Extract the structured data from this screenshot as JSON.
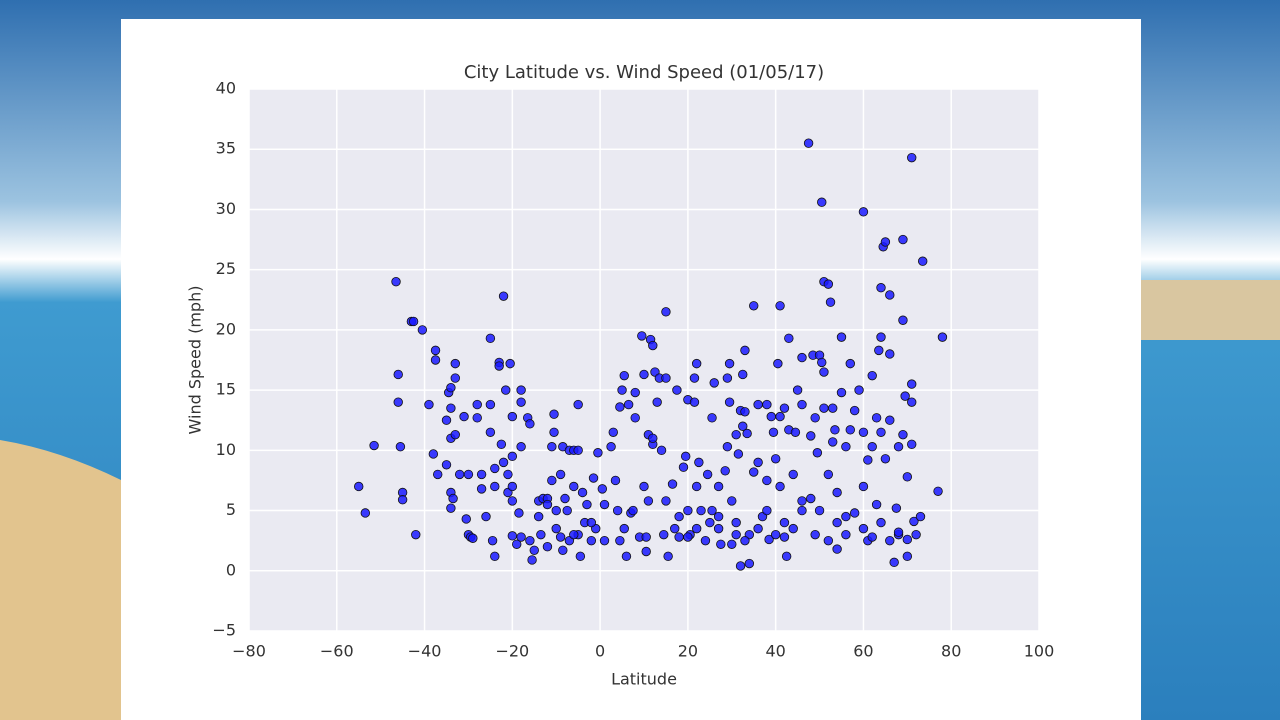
{
  "chart_data": {
    "type": "scatter",
    "title": "City Latitude vs. Wind Speed (01/05/17)",
    "x_label": "Latitude",
    "y_label": "Wind Speed (mph)",
    "xlim": [
      -80,
      100
    ],
    "ylim": [
      -5,
      40
    ],
    "xticks": [
      {
        "value": -80,
        "label": "−80"
      },
      {
        "value": -60,
        "label": "−60"
      },
      {
        "value": -40,
        "label": "−40"
      },
      {
        "value": -20,
        "label": "−20"
      },
      0,
      20,
      40,
      60,
      80,
      100
    ],
    "yticks": [
      {
        "value": -5,
        "label": "−5"
      },
      0,
      5,
      10,
      15,
      20,
      25,
      30,
      35,
      40
    ],
    "grid": true,
    "series": [
      {
        "color": "#1a1aff",
        "x": [
          -55,
          -53.5,
          -51.5,
          -46.5,
          -46,
          -46,
          -45.5,
          -45,
          -45,
          -43,
          -42.5,
          -42,
          -40.5,
          -39,
          -38,
          -37.5,
          -37.5,
          -37,
          -35,
          -34.5,
          -34,
          -34,
          -34,
          -33,
          -33,
          -33,
          -35,
          -34,
          -34,
          -33.5,
          -32,
          -31,
          -30,
          -30.5,
          -30,
          -29.5,
          -29,
          -28,
          -28,
          -27,
          -27,
          -26,
          -25,
          -25,
          -25,
          -24.5,
          -24,
          -24,
          -24,
          -23,
          -23,
          -22.5,
          -22,
          -22,
          -21.5,
          -21,
          -21,
          -20.5,
          -20,
          -20,
          -20,
          -20,
          -20,
          -19,
          -18.5,
          -18,
          -18,
          -18,
          -18,
          -16.5,
          -16,
          -16,
          -15.5,
          -15,
          -14,
          -14,
          -13.5,
          -13,
          -12,
          -12,
          -11,
          -11,
          -10.5,
          -10.5,
          -10,
          -10,
          -9,
          -9,
          -8.5,
          -8.5,
          -8,
          -7.5,
          -7,
          -7,
          -6,
          -6,
          -5,
          -5,
          -5,
          -4.5,
          -4,
          -3.5,
          -3,
          -2,
          -1.5,
          -1,
          -0.5,
          0.5,
          1,
          1,
          2.5,
          3,
          3.5,
          4,
          4.5,
          4.5,
          5,
          5.5,
          5.5,
          6,
          6.5,
          7,
          7.5,
          8,
          8,
          9,
          9.5,
          10,
          10,
          10.5,
          10.5,
          11,
          11,
          11.5,
          12,
          12,
          12,
          12.5,
          13,
          13.5,
          14,
          14.5,
          15,
          15,
          15,
          15.5,
          16.5,
          17,
          17.5,
          18,
          19,
          19.5,
          20,
          20,
          20.5,
          21.5,
          21.5,
          22,
          22,
          22.5,
          23,
          24,
          24.5,
          25.5,
          25.5,
          26,
          27,
          27,
          27.5,
          28.5,
          29,
          29,
          29.5,
          29.5,
          30,
          30,
          31,
          31,
          31.5,
          32,
          32,
          32.5,
          32.5,
          33,
          33,
          33.5,
          34,
          34,
          35,
          35,
          36,
          36,
          37,
          38,
          38,
          38.5,
          39,
          39.5,
          40,
          40.5,
          41,
          41,
          41,
          42,
          42,
          42.5,
          43,
          43,
          44,
          44.5,
          45,
          46,
          46,
          46,
          47.5,
          48,
          48,
          48.5,
          49,
          49,
          49.5,
          50,
          50.5,
          50.5,
          51,
          51,
          51,
          52,
          52,
          52.5,
          53,
          53,
          53.5,
          54,
          54,
          55,
          55,
          56,
          56,
          57,
          57,
          58,
          59,
          60,
          60,
          60,
          61,
          61,
          62,
          62,
          63,
          63,
          63.5,
          64,
          64,
          64,
          64.5,
          65,
          65,
          66,
          66,
          66,
          67,
          67.5,
          68,
          68,
          69,
          69,
          69,
          69.5,
          70,
          70,
          71,
          71,
          71,
          71,
          71.5,
          72,
          73,
          73.5,
          77,
          78,
          25,
          27,
          31,
          33,
          36,
          38,
          40,
          42,
          44,
          46,
          50,
          52,
          54,
          56,
          58,
          60,
          62,
          64,
          66,
          68,
          70,
          20,
          22,
          18,
          -2,
          -6,
          -12
        ],
        "values": [
          7,
          4.8,
          10.4,
          24,
          16.3,
          14,
          10.3,
          6.5,
          5.9,
          20.7,
          20.7,
          3,
          20,
          13.8,
          9.7,
          18.3,
          17.5,
          8,
          12.5,
          14.8,
          15.2,
          13.5,
          11,
          17.2,
          16,
          11.3,
          8.8,
          6.5,
          5.2,
          6,
          8,
          12.8,
          8,
          4.3,
          3,
          2.8,
          2.7,
          13.8,
          12.7,
          8,
          6.8,
          4.5,
          19.3,
          13.8,
          11.5,
          2.5,
          8.5,
          7,
          1.2,
          17.3,
          17,
          10.5,
          22.8,
          9,
          15,
          8,
          6.5,
          17.2,
          12.8,
          9.5,
          7,
          5.8,
          2.9,
          2.2,
          4.8,
          15,
          14,
          10.3,
          2.8,
          12.7,
          12.2,
          2.5,
          0.9,
          1.7,
          5.8,
          4.5,
          3,
          6,
          2,
          6,
          10.3,
          7.5,
          13,
          11.5,
          5,
          3.5,
          8,
          2.8,
          10.3,
          1.7,
          6,
          5,
          10,
          2.5,
          10,
          7,
          13.8,
          10,
          3,
          1.2,
          6.5,
          4,
          5.5,
          2.5,
          7.7,
          3.5,
          9.8,
          6.8,
          5.5,
          2.5,
          10.3,
          11.5,
          7.5,
          5,
          2.5,
          13.6,
          15,
          16.2,
          3.5,
          1.2,
          13.8,
          4.8,
          5,
          12.7,
          14.8,
          2.8,
          19.5,
          16.3,
          7,
          2.8,
          1.6,
          11.3,
          5.8,
          19.2,
          18.7,
          10.5,
          11,
          16.5,
          14,
          16,
          10,
          3,
          21.5,
          16,
          5.8,
          1.2,
          7.2,
          3.5,
          15,
          2.8,
          8.6,
          9.5,
          14.2,
          5,
          3,
          14,
          16,
          17.2,
          7,
          9,
          5,
          2.5,
          8,
          12.7,
          5,
          15.6,
          7,
          3.5,
          2.2,
          8.3,
          10.3,
          16,
          17.2,
          14,
          5.8,
          2.2,
          11.3,
          4,
          9.7,
          13.3,
          0.4,
          16.3,
          12,
          18.3,
          13.2,
          11.4,
          3,
          0.6,
          8.2,
          22,
          9,
          13.8,
          4.5,
          13.8,
          7.5,
          2.6,
          12.8,
          11.5,
          9.3,
          17.2,
          22,
          12.8,
          7,
          13.5,
          2.8,
          1.2,
          19.3,
          11.7,
          8,
          11.5,
          15,
          17.7,
          13.8,
          5.8,
          35.5,
          11.2,
          6,
          17.9,
          12.7,
          3,
          9.8,
          17.9,
          30.6,
          17.3,
          24,
          16.5,
          13.5,
          23.8,
          8,
          22.3,
          13.5,
          10.7,
          11.7,
          6.5,
          1.8,
          19.4,
          14.8,
          10.3,
          4.5,
          17.2,
          11.7,
          13.3,
          15,
          29.8,
          11.5,
          7,
          9.2,
          2.5,
          16.2,
          10.3,
          12.7,
          5.5,
          18.3,
          23.5,
          19.4,
          11.5,
          26.9,
          27.3,
          9.3,
          22.9,
          18,
          12.5,
          0.7,
          5.2,
          10.3,
          3,
          27.5,
          20.8,
          11.3,
          14.5,
          7.8,
          1.2,
          15.5,
          14,
          10.5,
          34.3,
          4.1,
          3,
          4.5,
          25.7,
          6.6,
          19.4,
          4,
          4.5,
          3,
          2.5,
          3.5,
          5,
          3,
          4,
          3.5,
          5,
          5,
          2.5,
          4,
          3,
          4.8,
          3.5,
          2.8,
          4,
          2.5,
          3.2,
          2.6,
          2.8,
          3.5,
          4.5,
          4,
          3,
          5.5
        ]
      }
    ]
  }
}
